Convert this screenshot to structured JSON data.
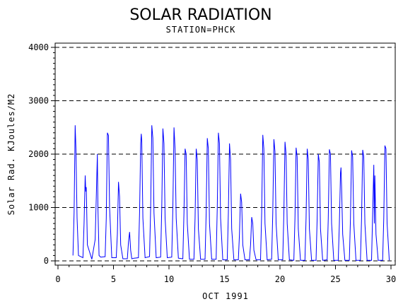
{
  "chart_data": {
    "type": "line",
    "title": "SOLAR RADIATION",
    "subtitle": "STATION=PHCK",
    "xlabel": "OCT 1991",
    "ylabel": "Solar Rad. KJoules/M2",
    "xlim": [
      0,
      30
    ],
    "ylim": [
      0,
      4000
    ],
    "x_ticks": [
      0,
      5,
      10,
      15,
      20,
      25,
      30
    ],
    "y_ticks": [
      0,
      1000,
      2000,
      3000,
      4000
    ],
    "grid": "horizontal dashed",
    "series": [
      {
        "color": "#0000ff",
        "x": [
          1.35,
          1.45,
          1.55,
          1.62,
          1.72,
          1.85,
          2.25,
          2.35,
          2.45,
          2.5,
          2.55,
          2.65,
          3.05,
          3.35,
          3.45,
          3.55,
          3.6,
          3.7,
          3.85,
          4.25,
          4.35,
          4.45,
          4.55,
          4.65,
          4.85,
          5.25,
          5.35,
          5.45,
          5.55,
          5.65,
          5.85,
          6.25,
          6.35,
          6.45,
          6.55,
          6.65,
          6.85,
          7.25,
          7.35,
          7.45,
          7.5,
          7.55,
          7.65,
          7.85,
          8.25,
          8.35,
          8.45,
          8.55,
          8.65,
          8.85,
          9.25,
          9.35,
          9.45,
          9.55,
          9.65,
          9.85,
          10.25,
          10.35,
          10.45,
          10.55,
          10.65,
          10.85,
          11.25,
          11.35,
          11.45,
          11.55,
          11.65,
          11.85,
          12.25,
          12.35,
          12.45,
          12.55,
          12.65,
          12.85,
          13.25,
          13.35,
          13.45,
          13.55,
          13.65,
          13.85,
          14.25,
          14.35,
          14.45,
          14.55,
          14.65,
          14.85,
          15.25,
          15.35,
          15.45,
          15.55,
          15.65,
          15.85,
          16.25,
          16.35,
          16.45,
          16.55,
          16.65,
          16.85,
          17.25,
          17.35,
          17.45,
          17.55,
          17.65,
          17.85,
          18.25,
          18.35,
          18.45,
          18.55,
          18.65,
          18.85,
          19.25,
          19.35,
          19.45,
          19.55,
          19.65,
          19.85,
          20.25,
          20.35,
          20.45,
          20.55,
          20.65,
          20.85,
          21.25,
          21.35,
          21.45,
          21.55,
          21.65,
          21.85,
          22.25,
          22.35,
          22.45,
          22.55,
          22.65,
          22.85,
          23.25,
          23.35,
          23.45,
          23.55,
          23.65,
          23.85,
          24.25,
          24.35,
          24.45,
          24.55,
          24.65,
          24.85,
          25.25,
          25.35,
          25.45,
          25.5,
          25.55,
          25.65,
          25.85,
          26.25,
          26.35,
          26.45,
          26.55,
          26.65,
          26.85,
          27.25,
          27.35,
          27.45,
          27.55,
          27.65,
          27.85,
          28.25,
          28.35,
          28.45,
          28.5,
          28.55,
          28.65,
          28.85,
          29.25,
          29.35,
          29.45,
          29.55,
          29.65,
          29.85
        ],
        "y": [
          100,
          900,
          2540,
          2100,
          800,
          100,
          60,
          700,
          1600,
          1300,
          1380,
          300,
          30,
          400,
          1200,
          2000,
          1000,
          100,
          70,
          80,
          800,
          2400,
          2350,
          1000,
          60,
          60,
          500,
          1480,
          1200,
          300,
          40,
          40,
          350,
          540,
          200,
          40,
          50,
          60,
          900,
          2200,
          2380,
          2250,
          800,
          60,
          80,
          1000,
          2540,
          2300,
          900,
          60,
          70,
          1000,
          2480,
          2200,
          800,
          60,
          70,
          1000,
          2500,
          2100,
          800,
          50,
          40,
          900,
          2100,
          2000,
          700,
          30,
          30,
          800,
          2100,
          1900,
          600,
          30,
          30,
          900,
          2300,
          2100,
          700,
          30,
          30,
          1000,
          2400,
          2200,
          800,
          20,
          20,
          900,
          2200,
          1900,
          600,
          20,
          20,
          500,
          1260,
          1100,
          300,
          20,
          20,
          300,
          820,
          700,
          200,
          20,
          20,
          900,
          2360,
          2100,
          700,
          20,
          30,
          900,
          2280,
          2050,
          700,
          20,
          20,
          900,
          2230,
          2000,
          700,
          20,
          10,
          800,
          2120,
          1950,
          600,
          10,
          10,
          800,
          2100,
          1900,
          600,
          10,
          10,
          800,
          2000,
          1850,
          600,
          10,
          20,
          800,
          2090,
          2000,
          700,
          10,
          10,
          700,
          1650,
          1750,
          1400,
          500,
          10,
          10,
          800,
          2070,
          1950,
          700,
          10,
          10,
          800,
          2080,
          1950,
          700,
          10,
          10,
          900,
          1800,
          700,
          1600,
          500,
          10,
          10,
          800,
          2160,
          2100,
          700,
          10
        ]
      }
    ]
  }
}
